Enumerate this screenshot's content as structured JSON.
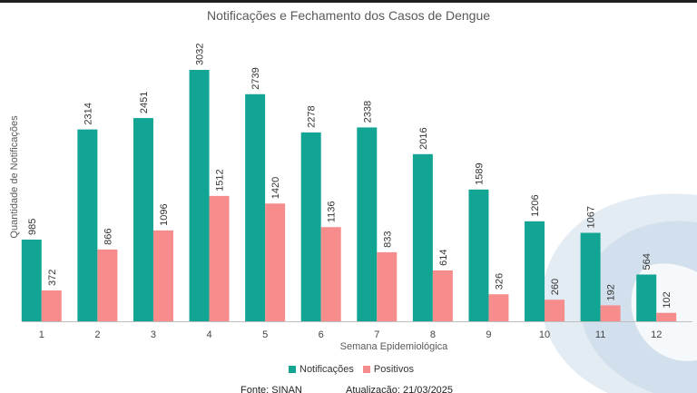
{
  "chart_data": {
    "type": "bar",
    "title": "Notificações e Fechamento dos Casos de Dengue",
    "xlabel": "Semana Epidemiológica",
    "ylabel": "Quantidade de Notificações",
    "categories": [
      "1",
      "2",
      "3",
      "4",
      "5",
      "6",
      "7",
      "8",
      "9",
      "10",
      "11",
      "12"
    ],
    "series": [
      {
        "name": "Notificações",
        "color": "#12a594",
        "values": [
          985,
          2314,
          2451,
          3032,
          2739,
          2278,
          2338,
          2016,
          1589,
          1206,
          1067,
          564
        ]
      },
      {
        "name": "Positivos",
        "color": "#f78c8c",
        "values": [
          372,
          866,
          1096,
          1512,
          1420,
          1136,
          833,
          614,
          326,
          260,
          192,
          102
        ]
      }
    ],
    "ylim": [
      0,
      3032
    ],
    "grid": false,
    "legend": "bottom-center"
  },
  "footer": {
    "source": "Fonte: SINAN",
    "updated": "Atualização: 21/03/2025"
  }
}
